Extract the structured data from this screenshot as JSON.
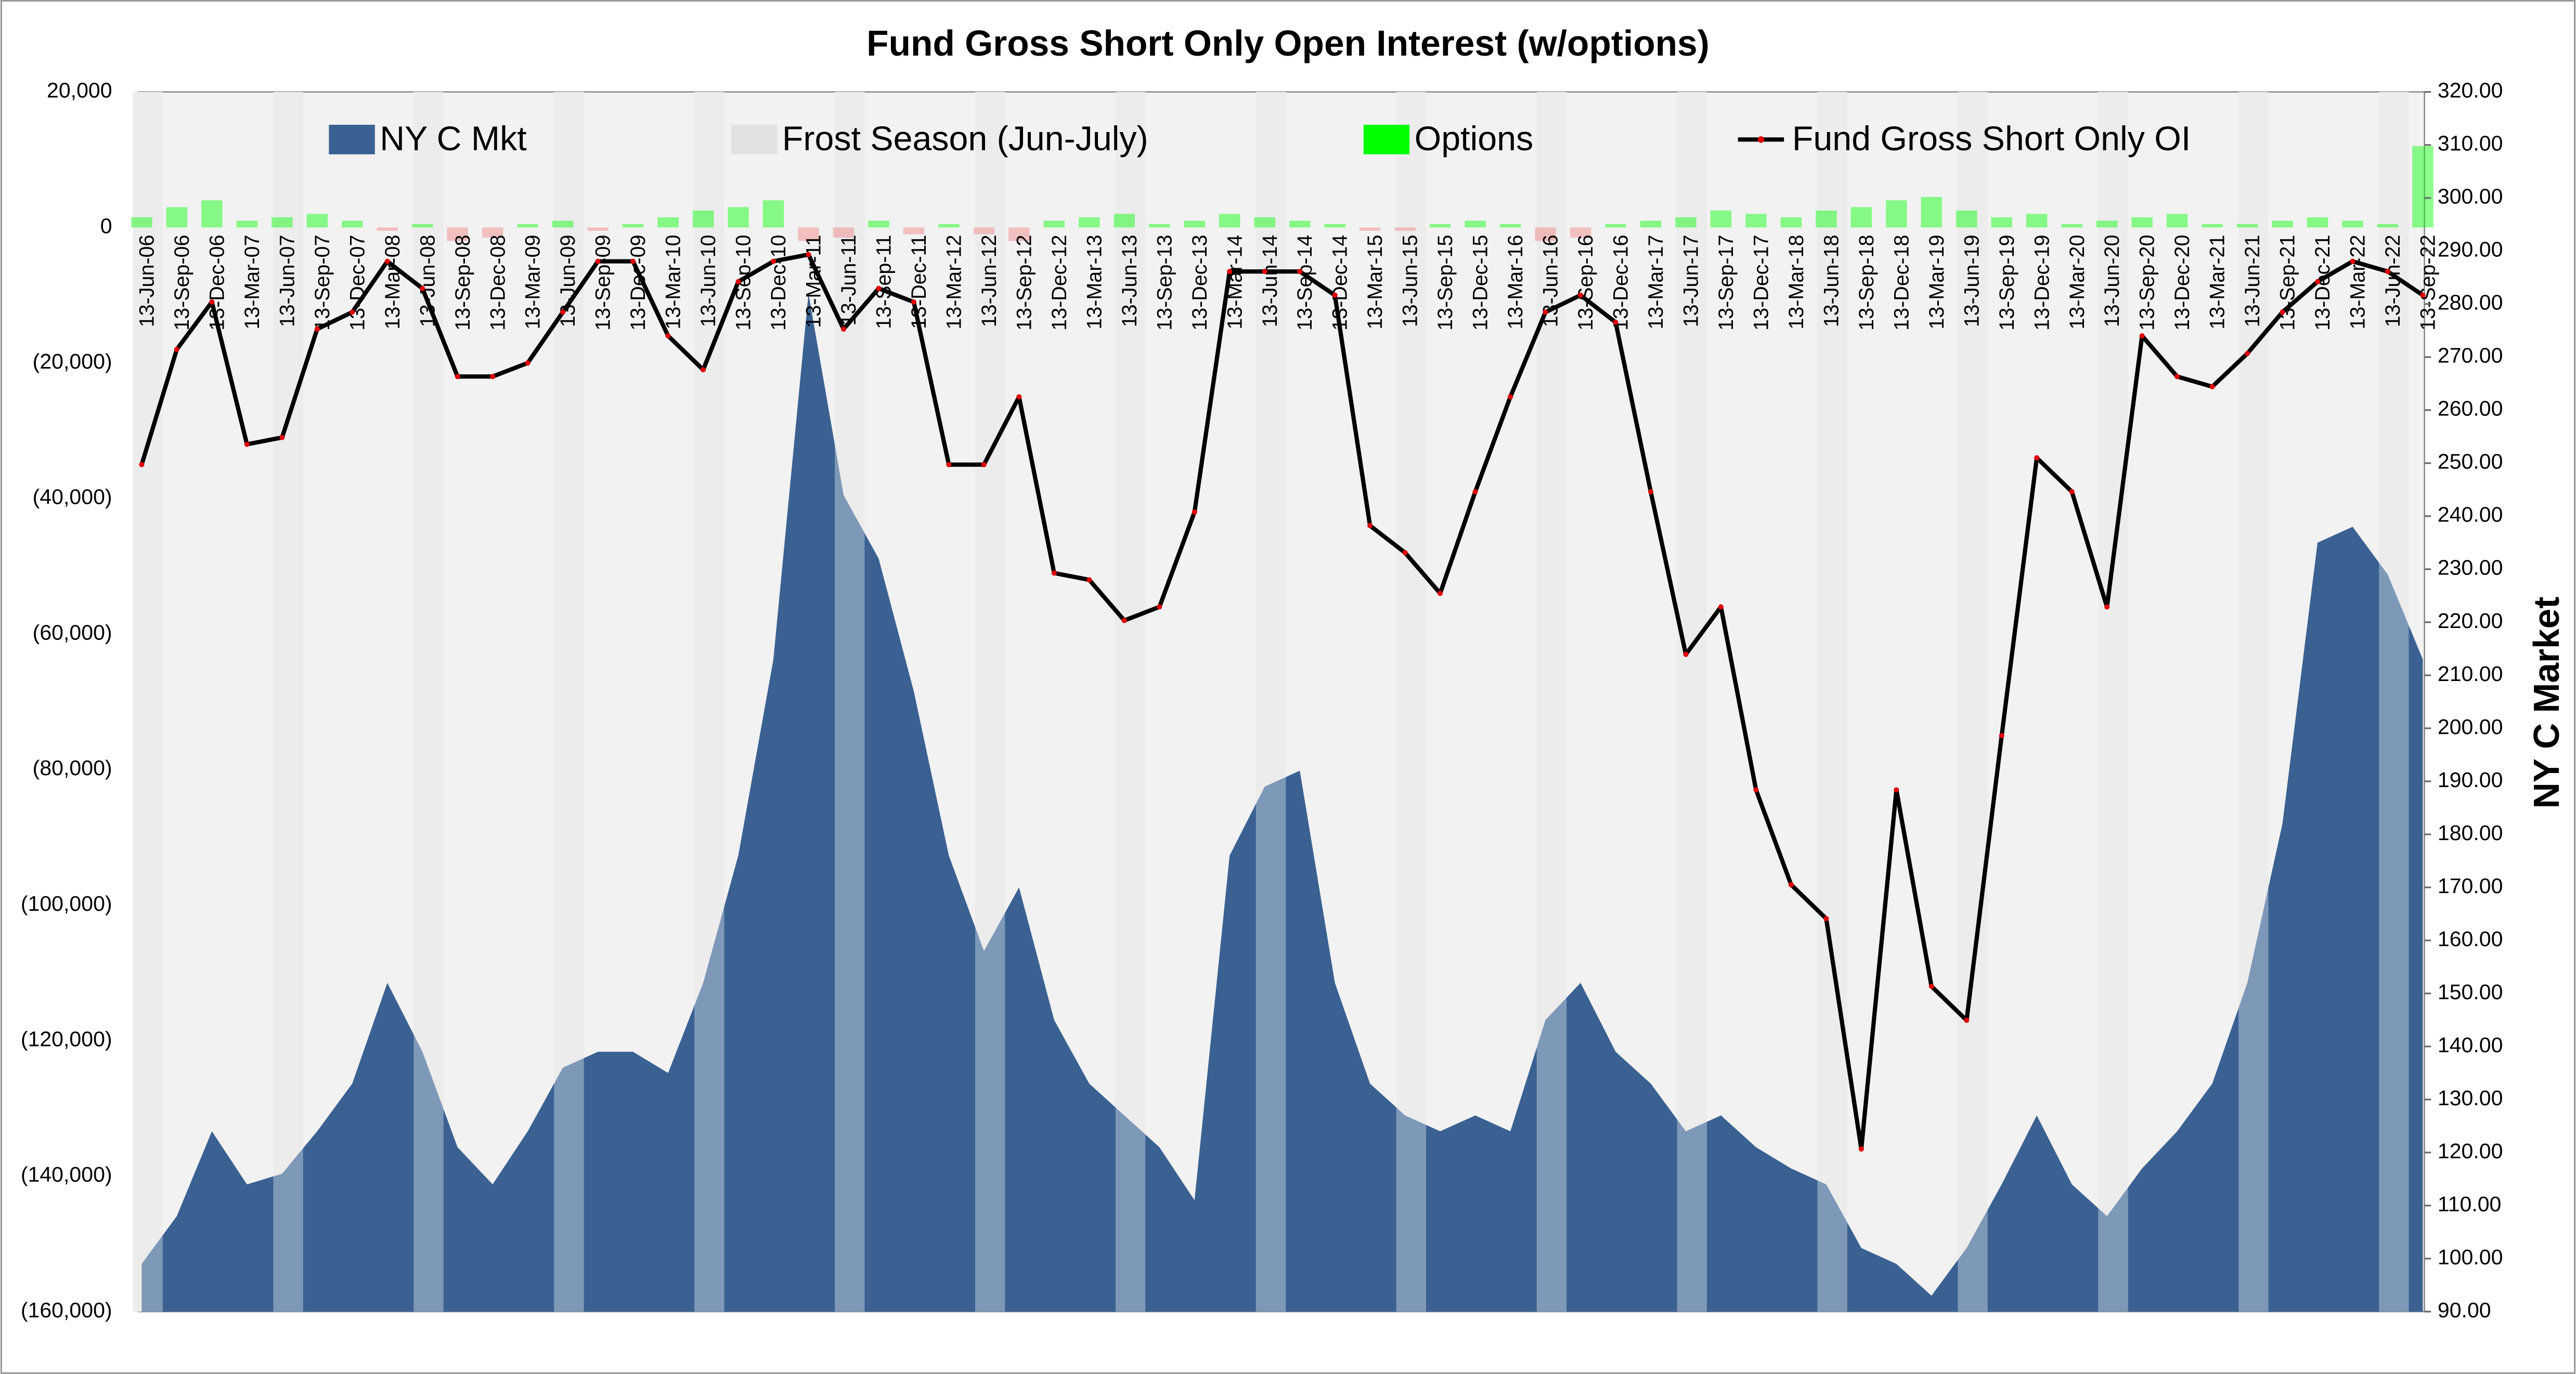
{
  "chart_data": {
    "type": "combo",
    "title": "Fund Gross Short Only Open Interest (w/options)",
    "y2label": "NY C Market",
    "categories": [
      "13-Jun-06",
      "13-Sep-06",
      "13-Dec-06",
      "13-Mar-07",
      "13-Jun-07",
      "13-Sep-07",
      "13-Dec-07",
      "13-Mar-08",
      "13-Jun-08",
      "13-Sep-08",
      "13-Dec-08",
      "13-Mar-09",
      "13-Jun-09",
      "13-Sep-09",
      "13-Dec-09",
      "13-Mar-10",
      "13-Jun-10",
      "13-Sep-10",
      "13-Dec-10",
      "13-Mar-11",
      "13-Jun-11",
      "13-Sep-11",
      "13-Dec-11",
      "13-Mar-12",
      "13-Jun-12",
      "13-Sep-12",
      "13-Dec-12",
      "13-Mar-13",
      "13-Jun-13",
      "13-Sep-13",
      "13-Dec-13",
      "13-Mar-14",
      "13-Jun-14",
      "13-Sep-14",
      "13-Dec-14",
      "13-Mar-15",
      "13-Jun-15",
      "13-Sep-15",
      "13-Dec-15",
      "13-Mar-16",
      "13-Jun-16",
      "13-Sep-16",
      "13-Dec-16",
      "13-Mar-17",
      "13-Jun-17",
      "13-Sep-17",
      "13-Dec-17",
      "13-Mar-18",
      "13-Jun-18",
      "13-Sep-18",
      "13-Dec-18",
      "13-Mar-19",
      "13-Jun-19",
      "13-Sep-19",
      "13-Dec-19",
      "13-Mar-20",
      "13-Jun-20",
      "13-Sep-20",
      "13-Dec-20",
      "13-Mar-21",
      "13-Jun-21",
      "13-Sep-21",
      "13-Dec-21",
      "13-Mar-22",
      "13-Jun-22",
      "13-Sep-22"
    ],
    "series": [
      {
        "name": "NY C Mkt",
        "type": "area",
        "axis": "y2",
        "color": "#3a6192",
        "values": [
          99,
          108,
          124,
          114,
          116,
          124,
          133,
          152,
          139,
          121,
          114,
          124,
          136,
          139,
          139,
          135,
          152,
          176,
          213,
          282,
          244,
          232,
          207,
          176,
          158,
          170,
          145,
          133,
          127,
          121,
          111,
          176,
          189,
          192,
          152,
          133,
          127,
          124,
          127,
          124,
          145,
          152,
          139,
          133,
          124,
          127,
          121,
          117,
          114,
          102,
          99,
          93,
          102,
          114,
          127,
          114,
          108,
          117,
          124,
          133,
          152,
          182,
          235,
          238,
          229,
          213
        ]
      },
      {
        "name": "Frost Season (Jun-July)",
        "type": "band",
        "axis": "y2",
        "color": "#e2e2e2",
        "values": [
          320,
          null,
          null,
          null,
          320,
          null,
          null,
          null,
          320,
          null,
          null,
          null,
          320,
          null,
          null,
          null,
          320,
          null,
          null,
          null,
          320,
          null,
          null,
          null,
          320,
          null,
          null,
          null,
          320,
          null,
          null,
          null,
          320,
          null,
          null,
          null,
          320,
          null,
          null,
          null,
          320,
          null,
          null,
          null,
          320,
          null,
          null,
          null,
          320,
          null,
          null,
          null,
          320,
          null,
          null,
          null,
          320,
          null,
          null,
          null,
          320,
          null,
          null,
          null,
          320,
          null
        ]
      },
      {
        "name": "Options",
        "type": "bar",
        "color": "#00ff00",
        "negative_color": "#f08080",
        "values": [
          1500,
          3000,
          4000,
          1000,
          1500,
          2000,
          1000,
          -500,
          500,
          -2000,
          -1500,
          500,
          1000,
          -500,
          500,
          1500,
          2500,
          3000,
          4000,
          -2000,
          -1500,
          1000,
          -1000,
          500,
          -1000,
          -2000,
          1000,
          1500,
          2000,
          500,
          1000,
          2000,
          1500,
          1000,
          500,
          -500,
          -500,
          500,
          1000,
          500,
          -2000,
          -1500,
          500,
          1000,
          1500,
          2500,
          2000,
          1500,
          2500,
          3000,
          4000,
          4500,
          2500,
          1500,
          2000,
          500,
          1000,
          1500,
          2000,
          500,
          500,
          1000,
          1500,
          1000,
          500,
          12000
        ]
      },
      {
        "name": "Fund Gross Short Only OI",
        "type": "line",
        "color": "#000000",
        "marker_color": "#e00000",
        "values": [
          -35000,
          -18000,
          -11000,
          -32000,
          -31000,
          -15000,
          -12500,
          -5000,
          -9000,
          -22000,
          -22000,
          -20000,
          -12500,
          -5000,
          -5000,
          -16000,
          -21000,
          -8000,
          -5000,
          -4000,
          -15000,
          -9000,
          -11000,
          -35000,
          -35000,
          -25000,
          -51000,
          -52000,
          -58000,
          -56000,
          -42000,
          -6500,
          -6500,
          -6500,
          -10000,
          -44000,
          -48000,
          -54000,
          -39000,
          -25000,
          -12500,
          -10000,
          -14000,
          -39000,
          -63000,
          -56000,
          -83000,
          -97000,
          -102000,
          -136000,
          -83000,
          -112000,
          -117000,
          -75000,
          -34000,
          -39000,
          -56000,
          -16000,
          -22000,
          -23500,
          -18600,
          -12500,
          -8000,
          -5000,
          -6500,
          -10000
        ]
      }
    ],
    "ylim": [
      -160000,
      20000
    ],
    "yticks": [
      {
        "value": 20000,
        "label": "20,000"
      },
      0,
      {
        "value": -20000,
        "label": "(20,000)"
      },
      {
        "value": -40000,
        "label": "(40,000)"
      },
      {
        "value": -60000,
        "label": "(60,000)"
      },
      {
        "value": -80000,
        "label": "(80,000)"
      },
      {
        "value": -100000,
        "label": "(100,000)"
      },
      {
        "value": -120000,
        "label": "(120,000)"
      },
      {
        "value": -140000,
        "label": "(140,000)"
      },
      {
        "value": -160000,
        "label": "(160,000)"
      }
    ],
    "y2lim": [
      90,
      320
    ],
    "y2ticks": [
      {
        "value": 320,
        "label": "320.00"
      },
      {
        "value": 310,
        "label": "310.00"
      },
      {
        "value": 300,
        "label": "300.00"
      },
      {
        "value": 290,
        "label": "290.00"
      },
      {
        "value": 280,
        "label": "280.00"
      },
      {
        "value": 270,
        "label": "270.00"
      },
      {
        "value": 260,
        "label": "260.00"
      },
      {
        "value": 250,
        "label": "250.00"
      },
      {
        "value": 240,
        "label": "240.00"
      },
      {
        "value": 230,
        "label": "230.00"
      },
      {
        "value": 220,
        "label": "220.00"
      },
      {
        "value": 210,
        "label": "210.00"
      },
      {
        "value": 200,
        "label": "200.00"
      },
      {
        "value": 190,
        "label": "190.00"
      },
      {
        "value": 180,
        "label": "180.00"
      },
      {
        "value": 170,
        "label": "170.00"
      },
      {
        "value": 160,
        "label": "160.00"
      },
      {
        "value": 150,
        "label": "150.00"
      },
      {
        "value": 140,
        "label": "140.00"
      },
      {
        "value": 130,
        "label": "130.00"
      },
      {
        "value": 120,
        "label": "120.00"
      },
      {
        "value": 110,
        "label": "110.00"
      },
      {
        "value": 100,
        "label": "100.00"
      },
      {
        "value": 90,
        "label": "90.00"
      }
    ],
    "grid": true,
    "legend": "top"
  }
}
